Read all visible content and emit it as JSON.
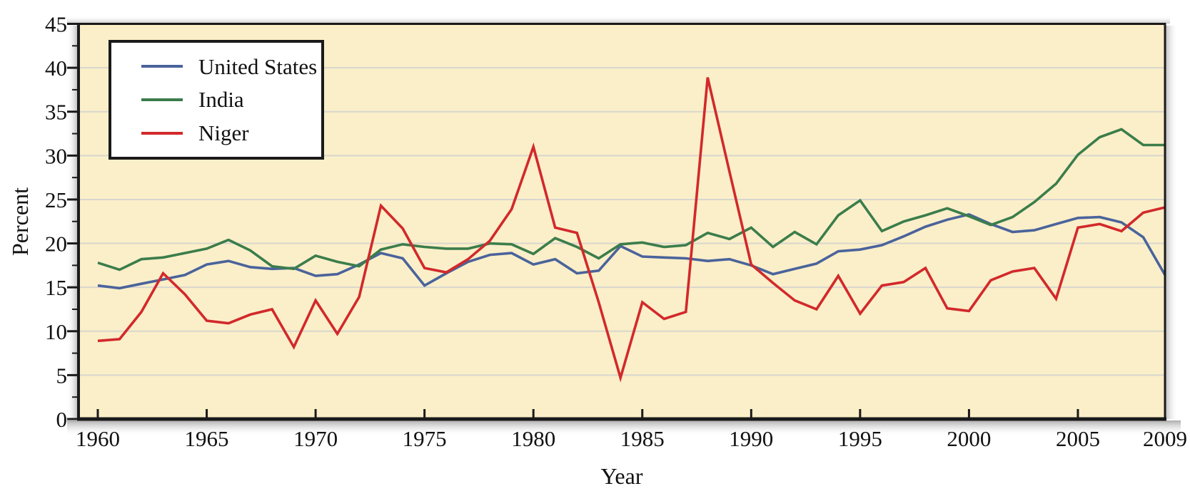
{
  "figure": {
    "plot_background": "#FBEFC9",
    "frame_color": "#1a1a1a",
    "gridline_color": "#D8D6CE",
    "text_color": "#111111",
    "legend_position": "top-left"
  },
  "chart_data": {
    "type": "line",
    "title": "",
    "xlabel": "Year",
    "ylabel": "Percent",
    "x_start": 1960,
    "x_end": 2009,
    "x": [
      1960,
      1961,
      1962,
      1963,
      1964,
      1965,
      1966,
      1967,
      1968,
      1969,
      1970,
      1971,
      1972,
      1973,
      1974,
      1975,
      1976,
      1977,
      1978,
      1979,
      1980,
      1981,
      1982,
      1983,
      1984,
      1985,
      1986,
      1987,
      1988,
      1989,
      1990,
      1991,
      1992,
      1993,
      1994,
      1995,
      1996,
      1997,
      1998,
      1999,
      2000,
      2001,
      2002,
      2003,
      2004,
      2005,
      2006,
      2007,
      2008,
      2009
    ],
    "x_ticks": [
      1960,
      1965,
      1970,
      1975,
      1980,
      1985,
      1990,
      1995,
      2000,
      2005,
      2009
    ],
    "x_tick_labels": [
      "1960",
      "1965",
      "1970",
      "1975",
      "1980",
      "1985",
      "1990",
      "1995",
      "2000",
      "2005",
      "2009"
    ],
    "ylim": [
      0,
      45
    ],
    "y_ticks": [
      0,
      5,
      10,
      15,
      20,
      25,
      30,
      35,
      40,
      45
    ],
    "y_tick_labels": [
      "0",
      "5",
      "10",
      "15",
      "20",
      "25",
      "30",
      "35",
      "40",
      "45"
    ],
    "y_minor_tick_step": 2.5,
    "grid": true,
    "legend_position": "top-left",
    "series": [
      {
        "name": "United States",
        "color": "#4A639B",
        "values": [
          15.2,
          14.9,
          15.4,
          15.9,
          16.4,
          17.6,
          18.0,
          17.3,
          17.1,
          17.2,
          16.3,
          16.5,
          17.6,
          18.9,
          18.3,
          15.2,
          16.6,
          17.9,
          18.7,
          18.9,
          17.6,
          18.2,
          16.6,
          16.9,
          19.7,
          18.5,
          18.4,
          18.3,
          18.0,
          18.2,
          17.5,
          16.5,
          17.1,
          17.7,
          19.1,
          19.3,
          19.8,
          20.8,
          21.9,
          22.7,
          23.3,
          22.2,
          21.3,
          21.5,
          22.2,
          22.9,
          23.0,
          22.4,
          20.7,
          16.4
        ]
      },
      {
        "name": "India",
        "color": "#3B7D4B",
        "values": [
          17.8,
          17.0,
          18.2,
          18.4,
          18.9,
          19.4,
          20.4,
          19.2,
          17.4,
          17.1,
          18.6,
          17.9,
          17.4,
          19.3,
          19.9,
          19.6,
          19.4,
          19.4,
          20.0,
          19.9,
          18.8,
          20.6,
          19.6,
          18.3,
          19.9,
          20.1,
          19.6,
          19.8,
          21.2,
          20.5,
          21.8,
          19.6,
          21.3,
          19.9,
          23.2,
          24.9,
          21.4,
          22.5,
          23.2,
          24.0,
          23.1,
          22.1,
          23.0,
          24.7,
          26.8,
          30.1,
          32.1,
          33.0,
          31.2,
          31.2
        ]
      },
      {
        "name": "Niger",
        "color": "#D2292B",
        "values": [
          8.9,
          9.1,
          12.2,
          16.6,
          14.2,
          11.2,
          10.9,
          11.9,
          12.5,
          8.2,
          13.5,
          9.7,
          13.9,
          24.3,
          21.7,
          17.2,
          16.7,
          18.2,
          20.3,
          23.9,
          31.0,
          21.8,
          21.2,
          13.3,
          4.7,
          13.3,
          11.4,
          12.2,
          38.9,
          28.2,
          17.6,
          15.5,
          13.5,
          12.5,
          16.3,
          12.0,
          15.2,
          15.6,
          17.2,
          12.6,
          12.3,
          15.8,
          16.8,
          17.2,
          13.7,
          21.8,
          22.2,
          21.4,
          23.5,
          24.1
        ]
      }
    ]
  }
}
